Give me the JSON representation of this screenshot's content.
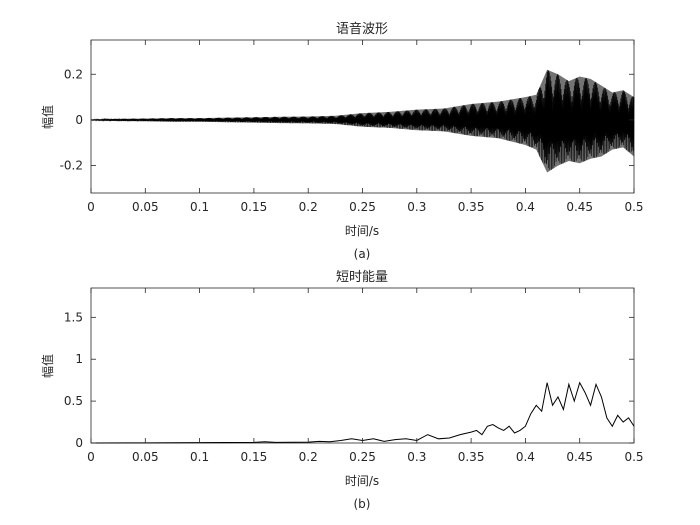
{
  "chart_data": [
    {
      "type": "line",
      "title": "语音波形",
      "xlabel": "时间/s",
      "ylabel": "幅值",
      "caption": "(a)",
      "xlim": [
        0,
        0.5
      ],
      "ylim": [
        -0.32,
        0.35
      ],
      "x_ticks": [
        0,
        0.05,
        0.1,
        0.15,
        0.2,
        0.25,
        0.3,
        0.35,
        0.4,
        0.45,
        0.5
      ],
      "x_tick_labels": [
        "0",
        "0.05",
        "0.1",
        "0.15",
        "0.2",
        "0.25",
        "0.3",
        "0.35",
        "0.4",
        "0.45",
        "0.5"
      ],
      "y_ticks": [
        -0.2,
        0,
        0.2
      ],
      "y_tick_labels": [
        "-0.2",
        "0",
        "0.2"
      ],
      "grid": false,
      "color": "#000000",
      "series": [
        {
          "x": [
            0,
            0.025,
            0.05,
            0.075,
            0.1,
            0.125,
            0.15,
            0.175,
            0.2,
            0.225,
            0.25,
            0.275,
            0.3,
            0.325,
            0.35,
            0.375,
            0.4,
            0.41,
            0.42,
            0.43,
            0.44,
            0.45,
            0.46,
            0.47,
            0.48,
            0.49,
            0.5
          ],
          "upper": [
            0.002,
            0.005,
            0.006,
            0.008,
            0.008,
            0.01,
            0.012,
            0.014,
            0.015,
            0.018,
            0.03,
            0.035,
            0.045,
            0.05,
            0.07,
            0.08,
            0.1,
            0.11,
            0.22,
            0.2,
            0.17,
            0.19,
            0.18,
            0.15,
            0.12,
            0.13,
            0.1
          ],
          "lower": [
            -0.002,
            -0.005,
            -0.006,
            -0.008,
            -0.008,
            -0.01,
            -0.012,
            -0.014,
            -0.015,
            -0.018,
            -0.03,
            -0.035,
            -0.045,
            -0.05,
            -0.07,
            -0.08,
            -0.11,
            -0.13,
            -0.23,
            -0.2,
            -0.18,
            -0.19,
            -0.17,
            -0.16,
            -0.13,
            -0.12,
            -0.16
          ]
        }
      ]
    },
    {
      "type": "line",
      "title": "短时能量",
      "xlabel": "时间/s",
      "ylabel": "幅值",
      "caption": "(b)",
      "xlim": [
        0,
        0.5
      ],
      "ylim": [
        0,
        1.85
      ],
      "x_ticks": [
        0,
        0.05,
        0.1,
        0.15,
        0.2,
        0.25,
        0.3,
        0.35,
        0.4,
        0.45,
        0.5
      ],
      "x_tick_labels": [
        "0",
        "0.05",
        "0.1",
        "0.15",
        "0.2",
        "0.25",
        "0.3",
        "0.35",
        "0.4",
        "0.45",
        "0.5"
      ],
      "y_ticks": [
        0,
        0.5,
        1,
        1.5
      ],
      "y_tick_labels": [
        "0",
        "0.5",
        "1",
        "1.5"
      ],
      "grid": false,
      "color": "#000000",
      "series": [
        {
          "x": [
            0,
            0.05,
            0.1,
            0.15,
            0.16,
            0.17,
            0.2,
            0.21,
            0.22,
            0.23,
            0.24,
            0.25,
            0.26,
            0.27,
            0.28,
            0.29,
            0.3,
            0.31,
            0.32,
            0.33,
            0.34,
            0.35,
            0.355,
            0.36,
            0.365,
            0.37,
            0.375,
            0.38,
            0.385,
            0.39,
            0.395,
            0.4,
            0.405,
            0.41,
            0.415,
            0.42,
            0.425,
            0.43,
            0.435,
            0.44,
            0.445,
            0.45,
            0.455,
            0.46,
            0.465,
            0.47,
            0.475,
            0.48,
            0.485,
            0.49,
            0.495,
            0.5
          ],
          "y": [
            0,
            0.002,
            0.004,
            0.008,
            0.015,
            0.008,
            0.01,
            0.02,
            0.015,
            0.03,
            0.05,
            0.03,
            0.05,
            0.02,
            0.04,
            0.05,
            0.03,
            0.1,
            0.05,
            0.06,
            0.1,
            0.13,
            0.15,
            0.1,
            0.2,
            0.22,
            0.18,
            0.15,
            0.2,
            0.12,
            0.15,
            0.2,
            0.35,
            0.45,
            0.38,
            0.72,
            0.45,
            0.55,
            0.4,
            0.7,
            0.5,
            0.72,
            0.6,
            0.45,
            0.7,
            0.55,
            0.3,
            0.2,
            0.33,
            0.25,
            0.3,
            0.2
          ]
        }
      ]
    }
  ]
}
